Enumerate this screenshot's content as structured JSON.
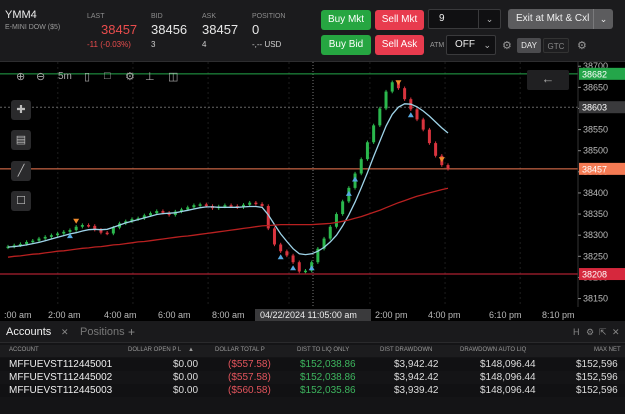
{
  "instrument": {
    "symbol": "YMM4",
    "description": "E-MINI DOW ($5)"
  },
  "quote": {
    "last_label": "LAST",
    "last": "38457",
    "change": "-11 (-0.03%)",
    "bid_label": "BID",
    "bid": "38456",
    "bid_size": "3",
    "ask_label": "ASK",
    "ask": "38457",
    "ask_size": "4",
    "position_label": "POSITION",
    "position": "0",
    "position_pnl": "-,-- USD"
  },
  "order_buttons": {
    "buy_mkt": "Buy Mkt",
    "sell_mkt": "Sell Mkt",
    "buy_bid": "Buy Bid",
    "sell_ask": "Sell Ask",
    "quantity": "9",
    "exit": "Exit at Mkt & Cxl",
    "atm_label": "ATM",
    "atm_value": "OFF",
    "day": "DAY",
    "gtc": "GTC"
  },
  "toolbar": {
    "timeframe": "5m"
  },
  "chart_data": {
    "type": "line",
    "ylim": [
      38130,
      38710
    ],
    "y_ticks": [
      38150,
      38200,
      38250,
      38300,
      38350,
      38400,
      38450,
      38500,
      38550,
      38600,
      38650,
      38700
    ],
    "x_ticks": [
      ":00 am",
      "2:00 am",
      "4:00 am",
      "6:00 am",
      "8:00 am",
      "2:00 pm",
      "4:00 pm",
      "6:10 pm",
      "8:10 pm"
    ],
    "crosshair_label": "04/22/2024 11:05:00 am",
    "price_labels": [
      {
        "value": 38682,
        "text": "38682",
        "color": "#24a64a"
      },
      {
        "value": 38603,
        "text": "38603",
        "color": "#3a3a3c"
      },
      {
        "value": 38457,
        "text": "38457",
        "color": "#f47a53"
      },
      {
        "value": 38208,
        "text": "38208",
        "color": "#d6283d"
      }
    ],
    "series": [
      {
        "name": "price",
        "color": "#2bb84d",
        "values": [
          38273,
          38276,
          38279,
          38284,
          38287,
          38292,
          38296,
          38300,
          38304,
          38308,
          38312,
          38320,
          38324,
          38322,
          38313,
          38306,
          38304,
          38318,
          38328,
          38333,
          38338,
          38340,
          38347,
          38352,
          38357,
          38353,
          38348,
          38356,
          38361,
          38366,
          38371,
          38373,
          38369,
          38364,
          38368,
          38371,
          38369,
          38366,
          38372,
          38377,
          38374,
          38369,
          38316,
          38278,
          38262,
          38252,
          38236,
          38214,
          38216,
          38236,
          38268,
          38292,
          38320,
          38350,
          38380,
          38412,
          38446,
          38480,
          38520,
          38560,
          38600,
          38640,
          38662,
          38648,
          38622,
          38598,
          38574,
          38550,
          38518,
          38488,
          38466,
          38457
        ]
      },
      {
        "name": "fast-ma",
        "color": "#9ed3e8",
        "values": [
          38272,
          38273,
          38275,
          38277,
          38280,
          38283,
          38287,
          38291,
          38295,
          38299,
          38303,
          38306,
          38310,
          38313,
          38314,
          38313,
          38314,
          38319,
          38324,
          38329,
          38333,
          38337,
          38341,
          38345,
          38349,
          38351,
          38352,
          38353,
          38356,
          38359,
          38362,
          38365,
          38367,
          38367,
          38366,
          38366,
          38366,
          38366,
          38367,
          38368,
          38368,
          38366,
          38348,
          38325,
          38303,
          38285,
          38268,
          38256,
          38254,
          38256,
          38262,
          38271,
          38284,
          38300,
          38322,
          38348,
          38378,
          38412,
          38448,
          38486,
          38522,
          38558,
          38586,
          38603,
          38611,
          38610,
          38604,
          38594,
          38582,
          38568,
          38554,
          38542
        ]
      },
      {
        "name": "slow-ma",
        "color": "#b82020",
        "values": [
          38248,
          38250,
          38251,
          38253,
          38255,
          38256,
          38258,
          38260,
          38262,
          38263,
          38265,
          38267,
          38269,
          38270,
          38272,
          38273,
          38275,
          38277,
          38278,
          38280,
          38282,
          38284,
          38285,
          38287,
          38289,
          38291,
          38293,
          38295,
          38297,
          38298,
          38300,
          38302,
          38304,
          38306,
          38308,
          38310,
          38312,
          38314,
          38316,
          38318,
          38320,
          38322,
          38323,
          38324,
          38325,
          38325,
          38325,
          38325,
          38325,
          38325,
          38326,
          38327,
          38328,
          38330,
          38333,
          38336,
          38340,
          38344,
          38349,
          38354,
          38359,
          38365,
          38371,
          38377,
          38382,
          38387,
          38392,
          38396,
          38400,
          38404,
          38408,
          38411
        ]
      }
    ]
  },
  "panel": {
    "tabs": [
      "Accounts",
      "Positions"
    ],
    "columns": [
      "ACCOUNT",
      "DOLLAR OPEN P L",
      "DOLLAR TOTAL P",
      "DIST TO LIQ ONLY",
      "DIST DRAWDOWN",
      "DRAWDOWN AUTO LIQ",
      "MAX NET"
    ],
    "rows": [
      [
        "MFFUEVST112445001",
        "$0.00",
        "($557.58)",
        "$152,038.86",
        "$3,942.42",
        "$148,096.44",
        "$152,596"
      ],
      [
        "MFFUEVST112445002",
        "$0.00",
        "($557.58)",
        "$152,038.86",
        "$3,942.42",
        "$148,096.44",
        "$152,596"
      ],
      [
        "MFFUEVST112445003",
        "$0.00",
        "($560.58)",
        "$152,035.86",
        "$3,939.42",
        "$148,096.44",
        "$152,596"
      ]
    ]
  }
}
